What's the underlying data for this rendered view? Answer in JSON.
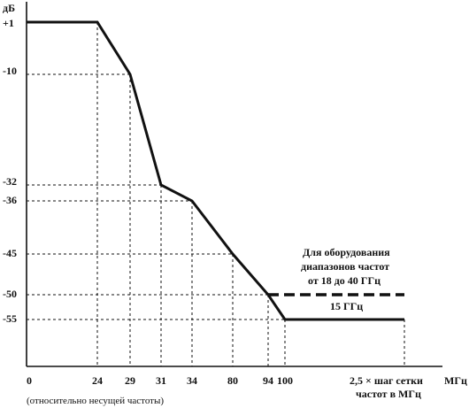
{
  "chart_data": {
    "type": "line",
    "ylabel": "дБ",
    "xlabel": "МГц",
    "x_ticks": [
      "0",
      "24",
      "29",
      "31",
      "34",
      "80",
      "94",
      "100"
    ],
    "x_last_tick": "2,5 × шаг сетки",
    "x_last_tick_line2": "частот в МГц",
    "x_sub_label": "(относительно несущей частоты)",
    "y_ticks": [
      "+1",
      "-10",
      "-32",
      "-36",
      "-45",
      "-50",
      "-55"
    ],
    "grid": "dashed guide lines to breakpoints",
    "series": [
      {
        "style": "solid",
        "points": [
          {
            "x": "0",
            "y": 1
          },
          {
            "x": "24",
            "y": 1
          },
          {
            "x": "29",
            "y": -10
          },
          {
            "x": "31",
            "y": -32
          },
          {
            "x": "34",
            "y": -36
          },
          {
            "x": "80",
            "y": -45
          },
          {
            "x": "94",
            "y": -50
          },
          {
            "x": "100",
            "y": -55
          },
          {
            "x": "2,5 × шаг сетки частот в МГц",
            "y": -55
          }
        ]
      },
      {
        "style": "dashed",
        "points": [
          {
            "x": "94",
            "y": -50
          },
          {
            "x": "2,5 × шаг сетки частот в МГц",
            "y": -50
          }
        ]
      }
    ],
    "annotations": {
      "note_line1": "Для оборудования",
      "note_line2": "диапазонов частот",
      "note_line3": "от 18 до 40 ГГц",
      "note_freq": "15 ГГц"
    }
  }
}
